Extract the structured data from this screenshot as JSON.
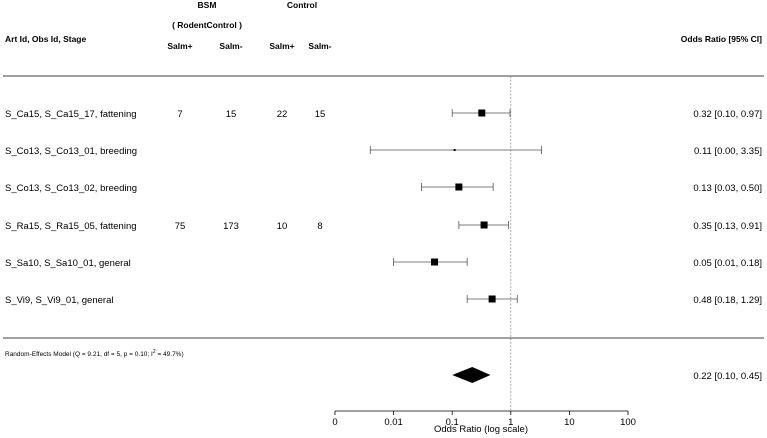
{
  "header": {
    "study_col": "Art Id, Obs Id, Stage",
    "group1": "BSM",
    "group1_sub": "( RodentControl )",
    "group2": "Control",
    "salm_pos": "Salm+",
    "salm_neg": "Salm-",
    "or_col": "Odds Ratio [95% CI]"
  },
  "chart_data": {
    "type": "forest",
    "x_scale": "log",
    "xlabel": "Odds Ratio (log scale)",
    "x_ticks": [
      {
        "label": "0",
        "value": 0.001
      },
      {
        "label": "0.01",
        "value": 0.01
      },
      {
        "label": "0.1",
        "value": 0.1
      },
      {
        "label": "1",
        "value": 1
      },
      {
        "label": "10",
        "value": 10
      },
      {
        "label": "100",
        "value": 100
      }
    ],
    "reference_line": 1,
    "studies": [
      {
        "label": "S_Ca15, S_Ca15_17, fattening",
        "bsm_pos": "7",
        "bsm_neg": "15",
        "ctrl_pos": "22",
        "ctrl_neg": "15",
        "or": 0.32,
        "lo": 0.1,
        "hi": 0.97,
        "text": "0.32 [0.10, 0.97]"
      },
      {
        "label": "S_Co13, S_Co13_01, breeding",
        "bsm_pos": "",
        "bsm_neg": "",
        "ctrl_pos": "",
        "ctrl_neg": "",
        "or": 0.11,
        "lo": 0.004,
        "hi": 3.35,
        "text": "0.11 [0.00, 3.35]"
      },
      {
        "label": "S_Co13, S_Co13_02, breeding",
        "bsm_pos": "",
        "bsm_neg": "",
        "ctrl_pos": "",
        "ctrl_neg": "",
        "or": 0.13,
        "lo": 0.03,
        "hi": 0.5,
        "text": "0.13 [0.03, 0.50]"
      },
      {
        "label": "S_Ra15, S_Ra15_05, fattening",
        "bsm_pos": "75",
        "bsm_neg": "173",
        "ctrl_pos": "10",
        "ctrl_neg": "8",
        "or": 0.35,
        "lo": 0.13,
        "hi": 0.91,
        "text": "0.35 [0.13, 0.91]"
      },
      {
        "label": "S_Sa10, S_Sa10_01, general",
        "bsm_pos": "",
        "bsm_neg": "",
        "ctrl_pos": "",
        "ctrl_neg": "",
        "or": 0.05,
        "lo": 0.01,
        "hi": 0.18,
        "text": "0.05 [0.01, 0.18]"
      },
      {
        "label": "S_Vi9, S_Vi9_01, general",
        "bsm_pos": "",
        "bsm_neg": "",
        "ctrl_pos": "",
        "ctrl_neg": "",
        "or": 0.48,
        "lo": 0.18,
        "hi": 1.29,
        "text": "0.48 [0.18, 1.29]"
      }
    ],
    "summary": {
      "label_prefix": "Random-Effects Model (Q = 9.21, df = 5, p = 0.10; I",
      "label_sup": "2",
      "label_suffix": " = 49.7%)",
      "or": 0.22,
      "lo": 0.1,
      "hi": 0.45,
      "text": "0.22 [0.10, 0.45]"
    }
  }
}
